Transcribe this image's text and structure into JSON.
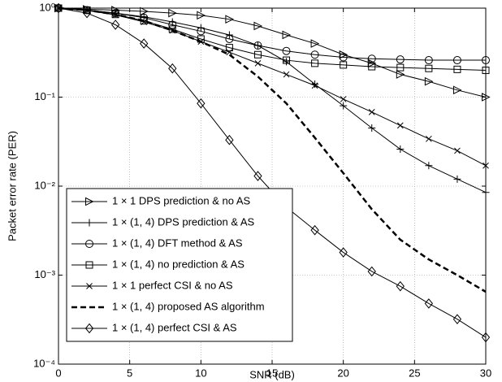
{
  "chart_data": {
    "type": "line",
    "x_label": "SNR (dB)",
    "y_label": "Packet error rate (PER)",
    "log_y": true,
    "grid": true,
    "legend": "lower left",
    "xlim": [
      0,
      30
    ],
    "xticks": [
      0,
      5,
      10,
      15,
      20,
      25,
      30
    ],
    "ylim": [
      0.0001,
      1
    ],
    "yticks": [
      {
        "value": 0.0001,
        "label": "10⁻⁴"
      },
      {
        "value": 0.001,
        "label": "10⁻³"
      },
      {
        "value": 0.01,
        "label": "10⁻²"
      },
      {
        "value": 0.1,
        "label": "10⁻¹"
      },
      {
        "value": 1,
        "label": "10⁰"
      }
    ],
    "x": [
      0,
      2,
      4,
      6,
      8,
      10,
      12,
      14,
      16,
      18,
      20,
      22,
      24,
      26,
      28,
      30
    ],
    "series": [
      {
        "name": "1 × 1 DPS prediction & no AS",
        "color": "#000000",
        "marker": "triangle-right",
        "style": "solid",
        "values": [
          1,
          0.97,
          0.95,
          0.92,
          0.88,
          0.83,
          0.75,
          0.63,
          0.5,
          0.4,
          0.3,
          0.24,
          0.18,
          0.15,
          0.12,
          0.1
        ]
      },
      {
        "name": "1 × (1, 4) DPS prediction & AS",
        "color": "#000000",
        "marker": "plus",
        "style": "solid",
        "values": [
          1,
          0.95,
          0.88,
          0.8,
          0.7,
          0.6,
          0.5,
          0.38,
          0.25,
          0.14,
          0.08,
          0.045,
          0.026,
          0.017,
          0.012,
          0.0085
        ]
      },
      {
        "name": "1 × (1, 4) DFT method & AS",
        "color": "#000000",
        "marker": "circle",
        "style": "solid",
        "values": [
          1,
          0.95,
          0.88,
          0.78,
          0.65,
          0.55,
          0.45,
          0.38,
          0.33,
          0.3,
          0.28,
          0.27,
          0.265,
          0.26,
          0.26,
          0.26
        ]
      },
      {
        "name": "1 × (1, 4) no prediction & AS",
        "color": "#000000",
        "marker": "square",
        "style": "solid",
        "values": [
          1,
          0.95,
          0.85,
          0.72,
          0.58,
          0.45,
          0.36,
          0.3,
          0.26,
          0.24,
          0.23,
          0.22,
          0.215,
          0.21,
          0.205,
          0.2
        ]
      },
      {
        "name": "1 × 1 perfect CSI & no AS",
        "color": "#000000",
        "marker": "x",
        "style": "solid",
        "values": [
          1,
          0.94,
          0.84,
          0.7,
          0.56,
          0.42,
          0.32,
          0.24,
          0.18,
          0.135,
          0.095,
          0.068,
          0.048,
          0.034,
          0.025,
          0.017
        ]
      },
      {
        "name": "1 × (1, 4) proposed AS algorithm",
        "color": "#000000",
        "marker": "none",
        "style": "dashed",
        "values": [
          1,
          0.95,
          0.85,
          0.72,
          0.56,
          0.42,
          0.3,
          0.17,
          0.085,
          0.035,
          0.014,
          0.0055,
          0.0025,
          0.0015,
          0.001,
          0.00065
        ]
      },
      {
        "name": "1 × (1, 4) perfect CSI & AS",
        "color": "#000000",
        "marker": "diamond",
        "style": "solid",
        "values": [
          1,
          0.88,
          0.65,
          0.4,
          0.21,
          0.085,
          0.033,
          0.013,
          0.0058,
          0.0032,
          0.0018,
          0.0011,
          0.00075,
          0.00048,
          0.00032,
          0.0002
        ]
      }
    ]
  }
}
